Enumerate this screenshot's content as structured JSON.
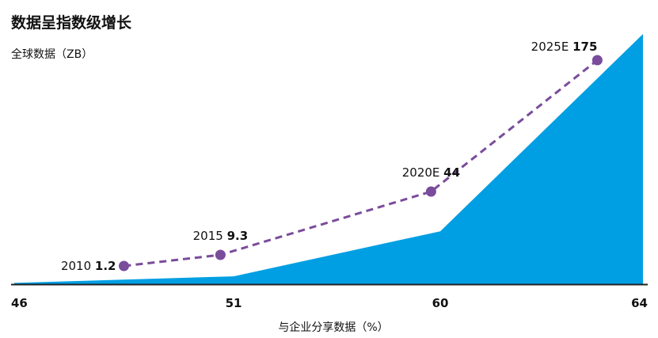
{
  "chart_data": {
    "type": "area",
    "title": "数据呈指数级增长",
    "unit_label": "全球数据（ZB）",
    "xlabel": "与企业分享数据（%）",
    "x_ticks": [
      46,
      51,
      60,
      64
    ],
    "area_series": {
      "x": [
        46,
        51,
        60,
        64
      ],
      "y": [
        0.9,
        5.5,
        37,
        175
      ]
    },
    "points": [
      {
        "year": "2010",
        "x": 48.5,
        "value": 1.2,
        "value_label": "1.2"
      },
      {
        "year": "2015",
        "x": 50.7,
        "value": 9.3,
        "value_label": "9.3"
      },
      {
        "year": "2020E",
        "x": 59.6,
        "value": 44,
        "value_label": "44"
      },
      {
        "year": "2025E",
        "x": 63.1,
        "value": 175,
        "value_label": "175"
      }
    ],
    "colors": {
      "area": "#009fe3",
      "line": "#7a4c9c",
      "marker": "#7a4c9c",
      "axis": "#222222"
    },
    "grid": false,
    "legend": "none"
  }
}
